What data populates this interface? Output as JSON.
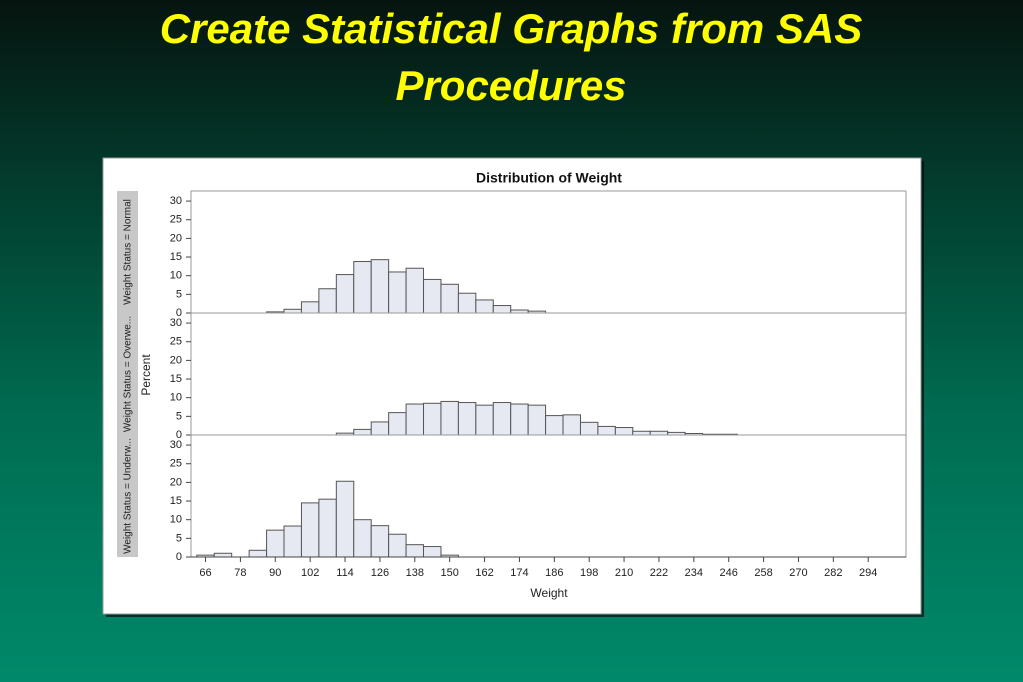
{
  "title": "Create Statistical Graphs from SAS Procedures",
  "chart_data": {
    "type": "histogram",
    "title": "Distribution of Weight",
    "xlabel": "Weight",
    "ylabel": "Percent",
    "color": "#e6e9f2",
    "bins": [
      63,
      69,
      75,
      81,
      87,
      93,
      99,
      105,
      111,
      117,
      123,
      129,
      135,
      141,
      147,
      153,
      159,
      165,
      171,
      177,
      183,
      189,
      195,
      201,
      207,
      213,
      219,
      225,
      231,
      237,
      243,
      249
    ],
    "panels": [
      {
        "label": "Weight Status = Normal",
        "values": [
          0,
          0,
          0,
          0,
          0.3,
          1,
          3,
          6.5,
          10.3,
          13.8,
          14.3,
          11,
          12,
          9,
          7.7,
          5.3,
          3.5,
          2,
          0.8,
          0.5,
          0,
          0,
          0,
          0,
          0,
          0,
          0,
          0,
          0,
          0,
          0
        ]
      },
      {
        "label": "Weight Status = Overwe...",
        "values": [
          0,
          0,
          0,
          0,
          0,
          0,
          0,
          0,
          0.5,
          1.5,
          3.5,
          6,
          8.3,
          8.5,
          9,
          8.7,
          8,
          8.7,
          8.3,
          8,
          5.2,
          5.4,
          3.4,
          2.3,
          2,
          1,
          1,
          0.7,
          0.4,
          0.2,
          0.2
        ]
      },
      {
        "label": "Weight Status = Underw...",
        "values": [
          0.5,
          1,
          0,
          1.8,
          7.2,
          8.3,
          14.5,
          15.5,
          20.3,
          10,
          8.4,
          6.1,
          3.3,
          2.8,
          0.5,
          0,
          0,
          0,
          0,
          0,
          0,
          0,
          0,
          0,
          0,
          0,
          0,
          0,
          0,
          0,
          0
        ]
      }
    ],
    "xlim": [
      61,
      307
    ],
    "xticks": [
      66,
      78,
      90,
      102,
      114,
      126,
      138,
      150,
      162,
      174,
      186,
      198,
      210,
      222,
      234,
      246,
      258,
      270,
      282,
      294
    ],
    "ylim": [
      0,
      32.7
    ],
    "yticks": [
      0,
      5,
      10,
      15,
      20,
      25,
      30
    ]
  }
}
